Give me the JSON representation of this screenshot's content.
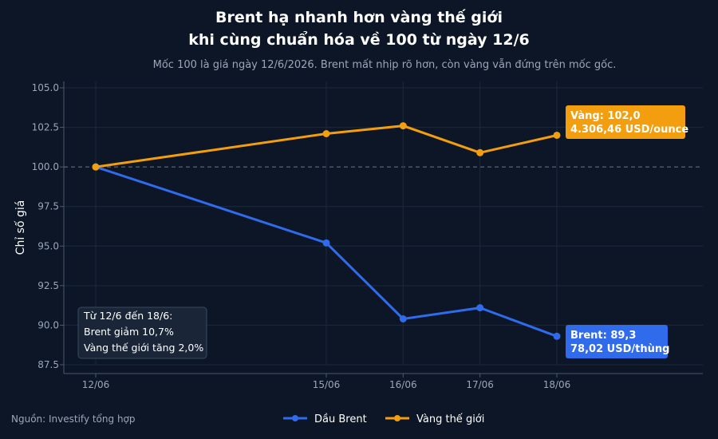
{
  "colors": {
    "background": "#0c1626",
    "grid": "#1c2a3d",
    "axis": "#4a5b70",
    "text_primary": "#ffffff",
    "text_muted": "#9aa7b8",
    "brent": "#2f6bea",
    "gold": "#f29e0e",
    "note_bg": "#1a2537",
    "note_border": "#3a4a60"
  },
  "chart_data": {
    "type": "line",
    "title_line1": "Brent hạ nhanh hơn vàng thế giới",
    "title_line2": "khi cùng chuẩn hóa về 100 từ ngày 12/6",
    "subtitle": "Mốc 100 là giá ngày 12/6/2026. Brent mất nhịp rõ hơn, còn vàng vẫn đứng trên mốc gốc.",
    "ylabel": "Chỉ số giá",
    "ylim": [
      87.5,
      105
    ],
    "yticks": [
      "105.0",
      "102.5",
      "100.0",
      "97.5",
      "95.0",
      "92.5",
      "90.0",
      "87.5"
    ],
    "ytick_values": [
      105,
      102.5,
      100,
      97.5,
      95,
      92.5,
      90,
      87.5
    ],
    "x_dates": [
      "2026-06-12",
      "2026-06-15",
      "2026-06-16",
      "2026-06-17",
      "2026-06-18"
    ],
    "xtick_labels": [
      "12/06",
      "15/06",
      "16/06",
      "17/06",
      "18/06"
    ],
    "baseline": 100,
    "grid": true,
    "legend_position": "bottom-center",
    "series": [
      {
        "name": "Dầu Brent",
        "values": [
          100,
          95.2,
          90.4,
          91.1,
          89.3
        ]
      },
      {
        "name": "Vàng thế giới",
        "values": [
          100,
          102.1,
          102.6,
          100.9,
          102.0
        ]
      }
    ],
    "annotations": {
      "gold_line1": "Vàng: 102,0",
      "gold_line2": "4.306,46 USD/ounce",
      "brent_line1": "Brent: 89,3",
      "brent_line2": "78,02 USD/thùng",
      "note_line1": "Từ 12/6 đến 18/6:",
      "note_line2": "Brent giảm 10,7%",
      "note_line3": "Vàng thế giới tăng 2,0%"
    },
    "source": "Nguồn: Investify tổng hợp"
  }
}
